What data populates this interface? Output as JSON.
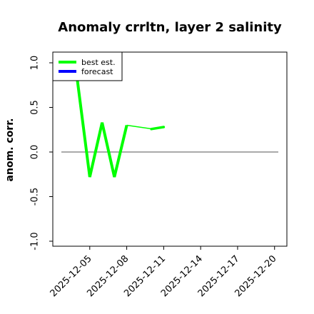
{
  "chart_data": {
    "type": "line",
    "title": "Anomaly crrltn, layer 2 salinity",
    "ylabel": "anom. corr.",
    "xlabel": "",
    "ylim": [
      -1.0,
      1.0
    ],
    "yticks": [
      1.0,
      0.5,
      0.0,
      -0.5,
      -1.0
    ],
    "ytick_labels": [
      "1.0",
      "0.5",
      "0.0",
      "-0.5",
      "-1.0"
    ],
    "xlim": [
      "2025-12-02",
      "2025-12-21"
    ],
    "xticks": [
      "2025-12-05",
      "2025-12-08",
      "2025-12-11",
      "2025-12-14",
      "2025-12-17",
      "2025-12-20"
    ],
    "xtick_labels": [
      "2025-12-05",
      "2025-12-08",
      "2025-12-11",
      "2025-12-14",
      "2025-12-17",
      "2025-12-20"
    ],
    "highlighted_xtick": "2025-12-11",
    "highlight_color": "#228B22",
    "reference_line": 0.0,
    "legend_position": "top-left",
    "series": [
      {
        "name": "best est.",
        "color": "#00ff00",
        "x": [
          "2025-12-04",
          "2025-12-05",
          "2025-12-06",
          "2025-12-07",
          "2025-12-08"
        ],
        "y": [
          0.8,
          -0.28,
          0.33,
          -0.28,
          0.3
        ]
      },
      {
        "name": "forecast",
        "color": "#0000ff",
        "x": [],
        "y": []
      },
      {
        "name": "",
        "color": "#00ff00",
        "x": [
          "2025-12-08",
          "2025-12-10",
          "2025-12-11"
        ],
        "y": [
          0.3,
          0.26,
          0.28
        ]
      }
    ]
  }
}
